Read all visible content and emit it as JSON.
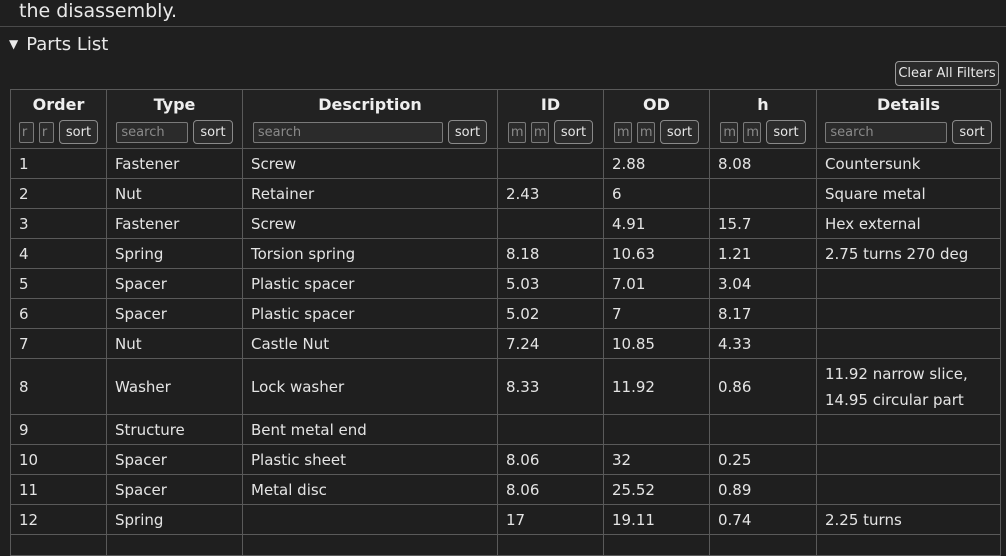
{
  "top_text": "the disassembly.",
  "section": {
    "toggle_glyph": "▼",
    "title": "Parts List"
  },
  "clear_filters_label": "Clear All Filters",
  "columns": [
    {
      "label": "Order",
      "filters": [
        "r",
        "r"
      ],
      "sort_label": "sort"
    },
    {
      "label": "Type",
      "placeholder": "search",
      "sort_label": "sort"
    },
    {
      "label": "Description",
      "placeholder": "search",
      "sort_label": "sort"
    },
    {
      "label": "ID",
      "filters": [
        "m",
        "m"
      ],
      "sort_label": "sort"
    },
    {
      "label": "OD",
      "filters": [
        "m",
        "m"
      ],
      "sort_label": "sort"
    },
    {
      "label": "h",
      "filters": [
        "m",
        "m"
      ],
      "sort_label": "sort"
    },
    {
      "label": "Details",
      "placeholder": "search",
      "sort_label": "sort"
    }
  ],
  "rows": [
    [
      "1",
      "Fastener",
      "Screw",
      "",
      "2.88",
      "8.08",
      "Countersunk"
    ],
    [
      "2",
      "Nut",
      "Retainer",
      "2.43",
      "6",
      "",
      "Square metal"
    ],
    [
      "3",
      "Fastener",
      "Screw",
      "",
      "4.91",
      "15.7",
      "Hex external"
    ],
    [
      "4",
      "Spring",
      "Torsion spring",
      "8.18",
      "10.63",
      "1.21",
      "2.75 turns 270 deg"
    ],
    [
      "5",
      "Spacer",
      "Plastic spacer",
      "5.03",
      "7.01",
      "3.04",
      ""
    ],
    [
      "6",
      "Spacer",
      "Plastic spacer",
      "5.02",
      "7",
      "8.17",
      ""
    ],
    [
      "7",
      "Nut",
      "Castle Nut",
      "7.24",
      "10.85",
      "4.33",
      ""
    ],
    [
      "8",
      "Washer",
      "Lock washer",
      "8.33",
      "11.92",
      "0.86",
      "11.92 narrow slice, 14.95 circular part"
    ],
    [
      "9",
      "Structure",
      "Bent metal end",
      "",
      "",
      "",
      ""
    ],
    [
      "10",
      "Spacer",
      "Plastic sheet",
      "8.06",
      "32",
      "0.25",
      ""
    ],
    [
      "11",
      "Spacer",
      "Metal disc",
      "8.06",
      "25.52",
      "0.89",
      ""
    ],
    [
      "12",
      "Spring",
      "",
      "17",
      "19.11",
      "0.74",
      "2.25 turns"
    ]
  ]
}
